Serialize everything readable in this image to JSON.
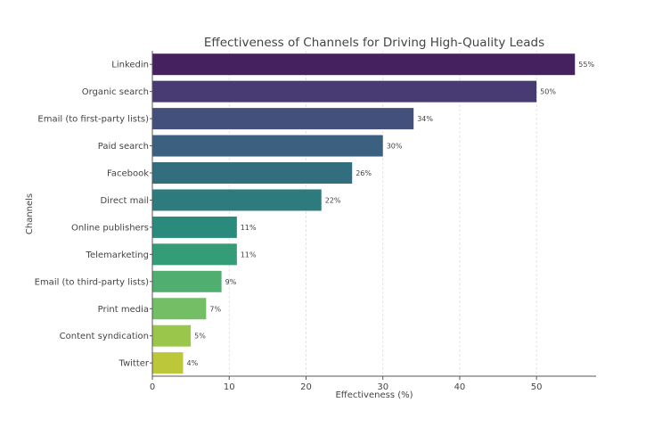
{
  "chart_data": {
    "type": "bar",
    "orientation": "horizontal",
    "title": "Effectiveness of Channels for Driving High-Quality Leads",
    "xlabel": "Effectiveness (%)",
    "ylabel": "Channels",
    "xlim": [
      0,
      57.75
    ],
    "xticks": [
      0,
      10,
      20,
      30,
      40,
      50
    ],
    "grid": "vertical dashed",
    "categories": [
      "Linkedin",
      "Organic search",
      "Email (to first-party lists)",
      "Paid search",
      "Facebook",
      "Direct mail",
      "Online publishers",
      "Telemarketing",
      "Email (to third-party lists)",
      "Print media",
      "Content syndication",
      "Twitter"
    ],
    "values": [
      55,
      50,
      34,
      30,
      26,
      22,
      11,
      11,
      9,
      7,
      5,
      4
    ],
    "data_labels": [
      "55%",
      "50%",
      "34%",
      "30%",
      "26%",
      "22%",
      "11%",
      "11%",
      "9%",
      "7%",
      "5%",
      "4%"
    ],
    "colors": [
      "#46215f",
      "#483a73",
      "#43507c",
      "#3b6080",
      "#336e7f",
      "#2e7b7e",
      "#2a8b7c",
      "#349d78",
      "#50ae70",
      "#74be66",
      "#9bc64c",
      "#bcc73a"
    ]
  }
}
